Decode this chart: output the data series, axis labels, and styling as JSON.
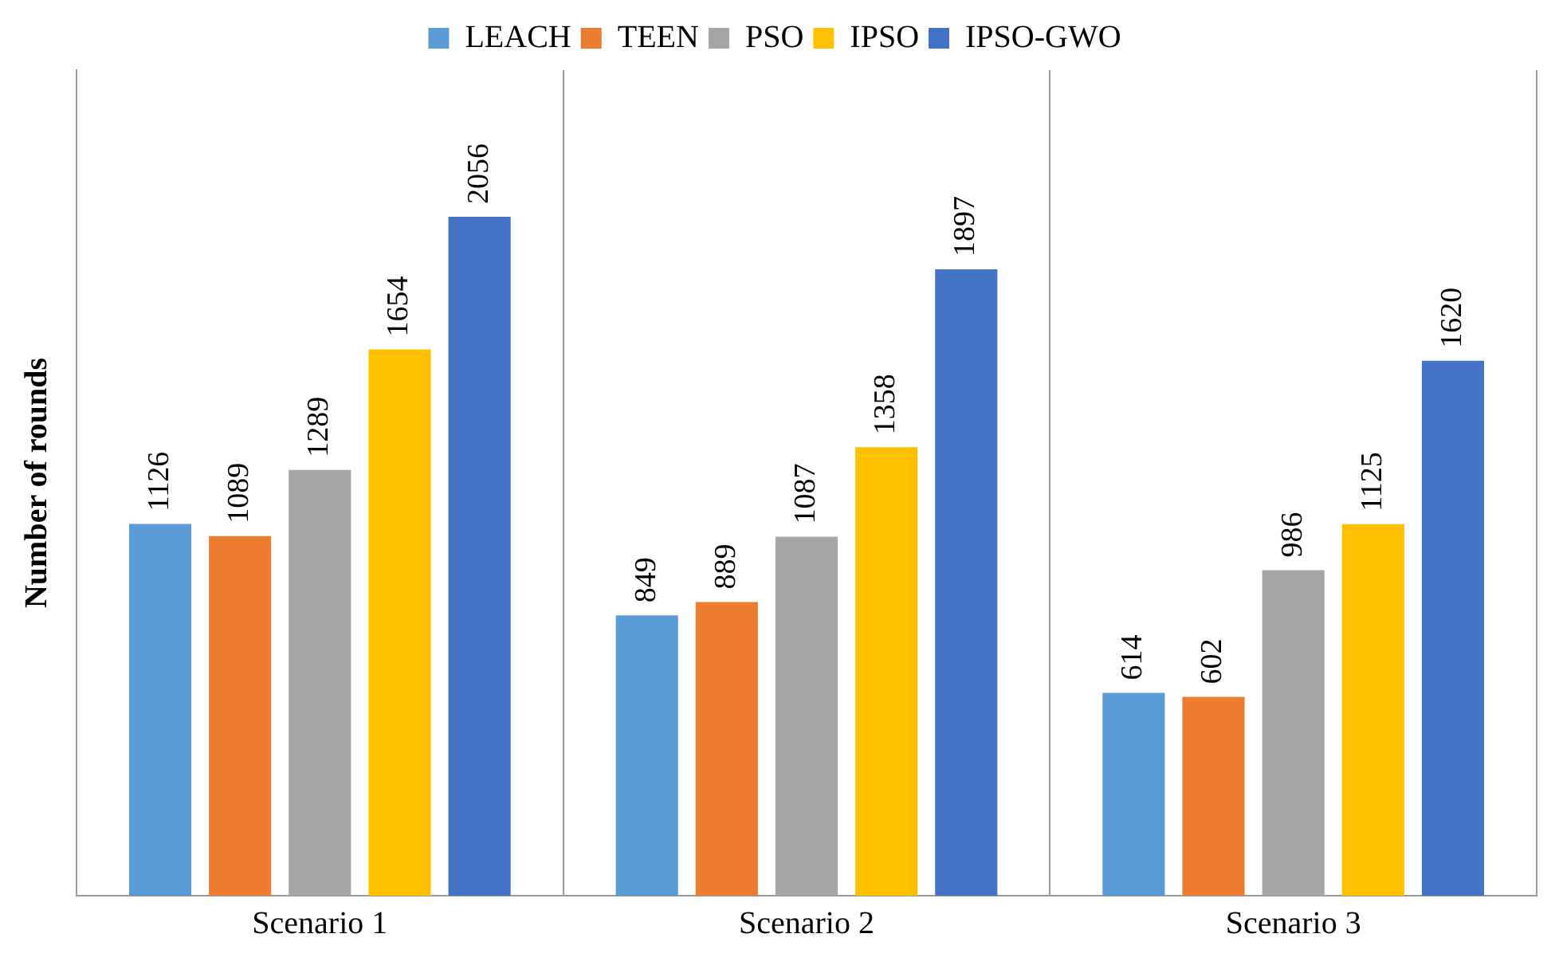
{
  "chart_data": {
    "type": "bar",
    "ylabel": "Number of rounds",
    "categories": [
      "Scenario 1",
      "Scenario 2",
      "Scenario 3"
    ],
    "series": [
      {
        "name": "LEACH",
        "color": "#5b9bd5",
        "values": [
          1126,
          849,
          614
        ]
      },
      {
        "name": "TEEN",
        "color": "#ed7d31",
        "values": [
          1089,
          889,
          602
        ]
      },
      {
        "name": "PSO",
        "color": "#a5a5a5",
        "values": [
          1289,
          1087,
          986
        ]
      },
      {
        "name": "IPSO",
        "color": "#ffc000",
        "values": [
          1654,
          1358,
          1125
        ]
      },
      {
        "name": "IPSO-GWO",
        "color": "#4472c4",
        "values": [
          2056,
          1897,
          1620
        ]
      }
    ],
    "data_labels": true,
    "legend": "top",
    "grid": "x",
    "tick_labels": "x"
  }
}
